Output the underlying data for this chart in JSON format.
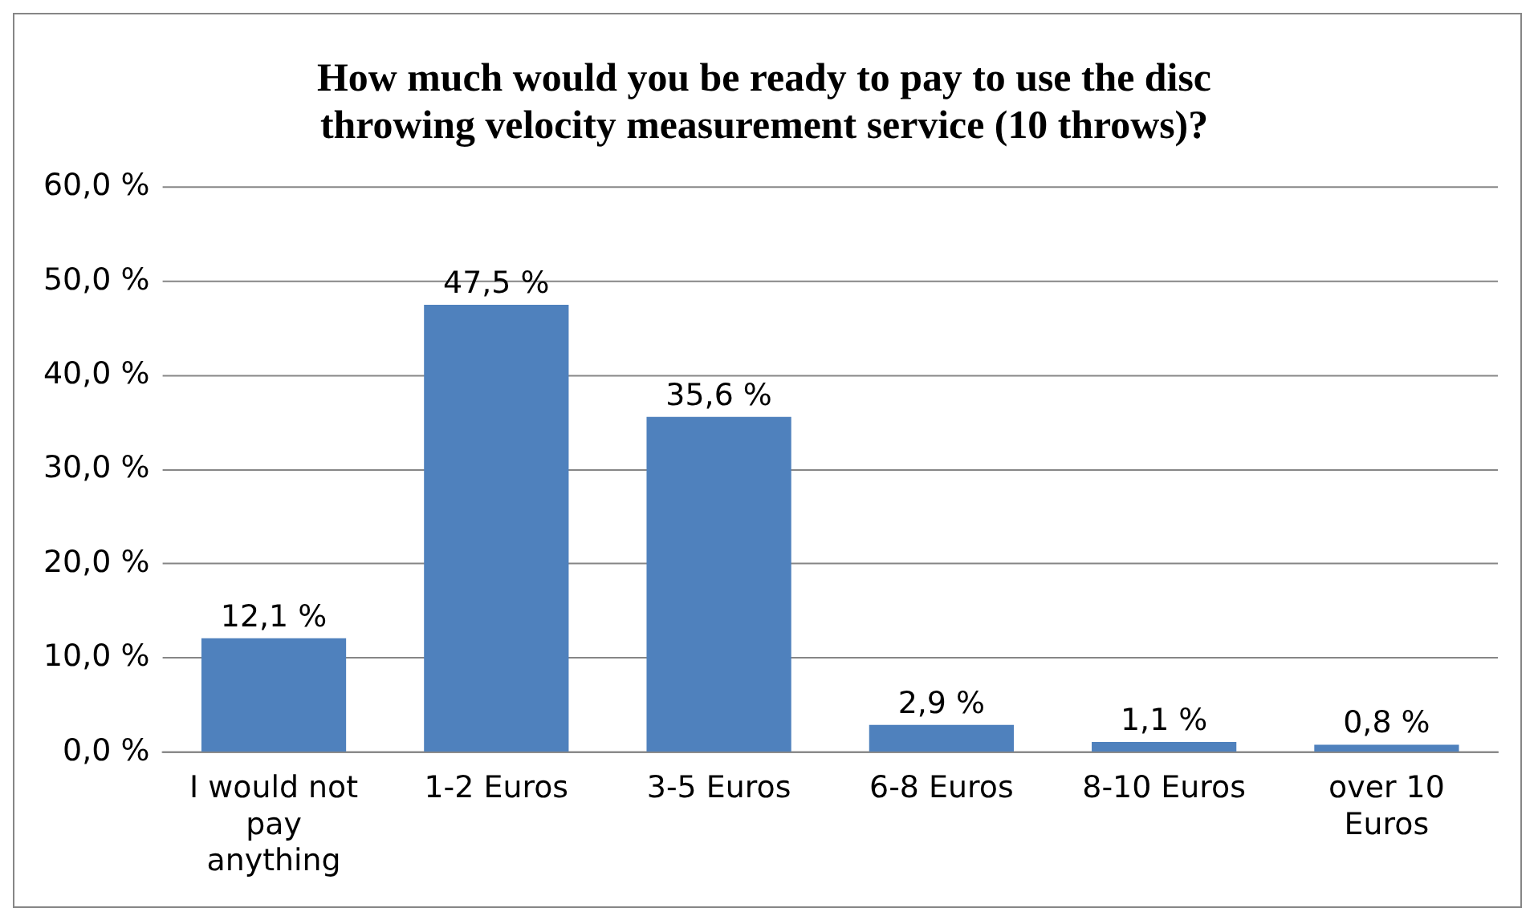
{
  "chart_data": {
    "type": "bar",
    "title": "How much would you be ready to pay to use the disc throwing velocity measurement service (10 throws)?",
    "categories": [
      "I would not pay anything",
      "1-2 Euros",
      "3-5 Euros",
      "6-8 Euros",
      "8-10 Euros",
      "over 10 Euros"
    ],
    "values": [
      12.1,
      47.5,
      35.6,
      2.9,
      1.1,
      0.8
    ],
    "value_labels": [
      "12,1 %",
      "47,5 %",
      "35,6 %",
      "2,9 %",
      "1,1 %",
      "0,8 %"
    ],
    "color": "#4f81bd",
    "ylim": [
      0,
      60
    ],
    "yticks": [
      {
        "value": 0,
        "label": "0,0 %"
      },
      {
        "value": 10,
        "label": "10,0 %"
      },
      {
        "value": 20,
        "label": "20,0 %"
      },
      {
        "value": 30,
        "label": "30,0 %"
      },
      {
        "value": 40,
        "label": "40,0 %"
      },
      {
        "value": 50,
        "label": "50,0 %"
      },
      {
        "value": 60,
        "label": "60,0 %"
      }
    ],
    "grid": "y",
    "legend": false
  }
}
